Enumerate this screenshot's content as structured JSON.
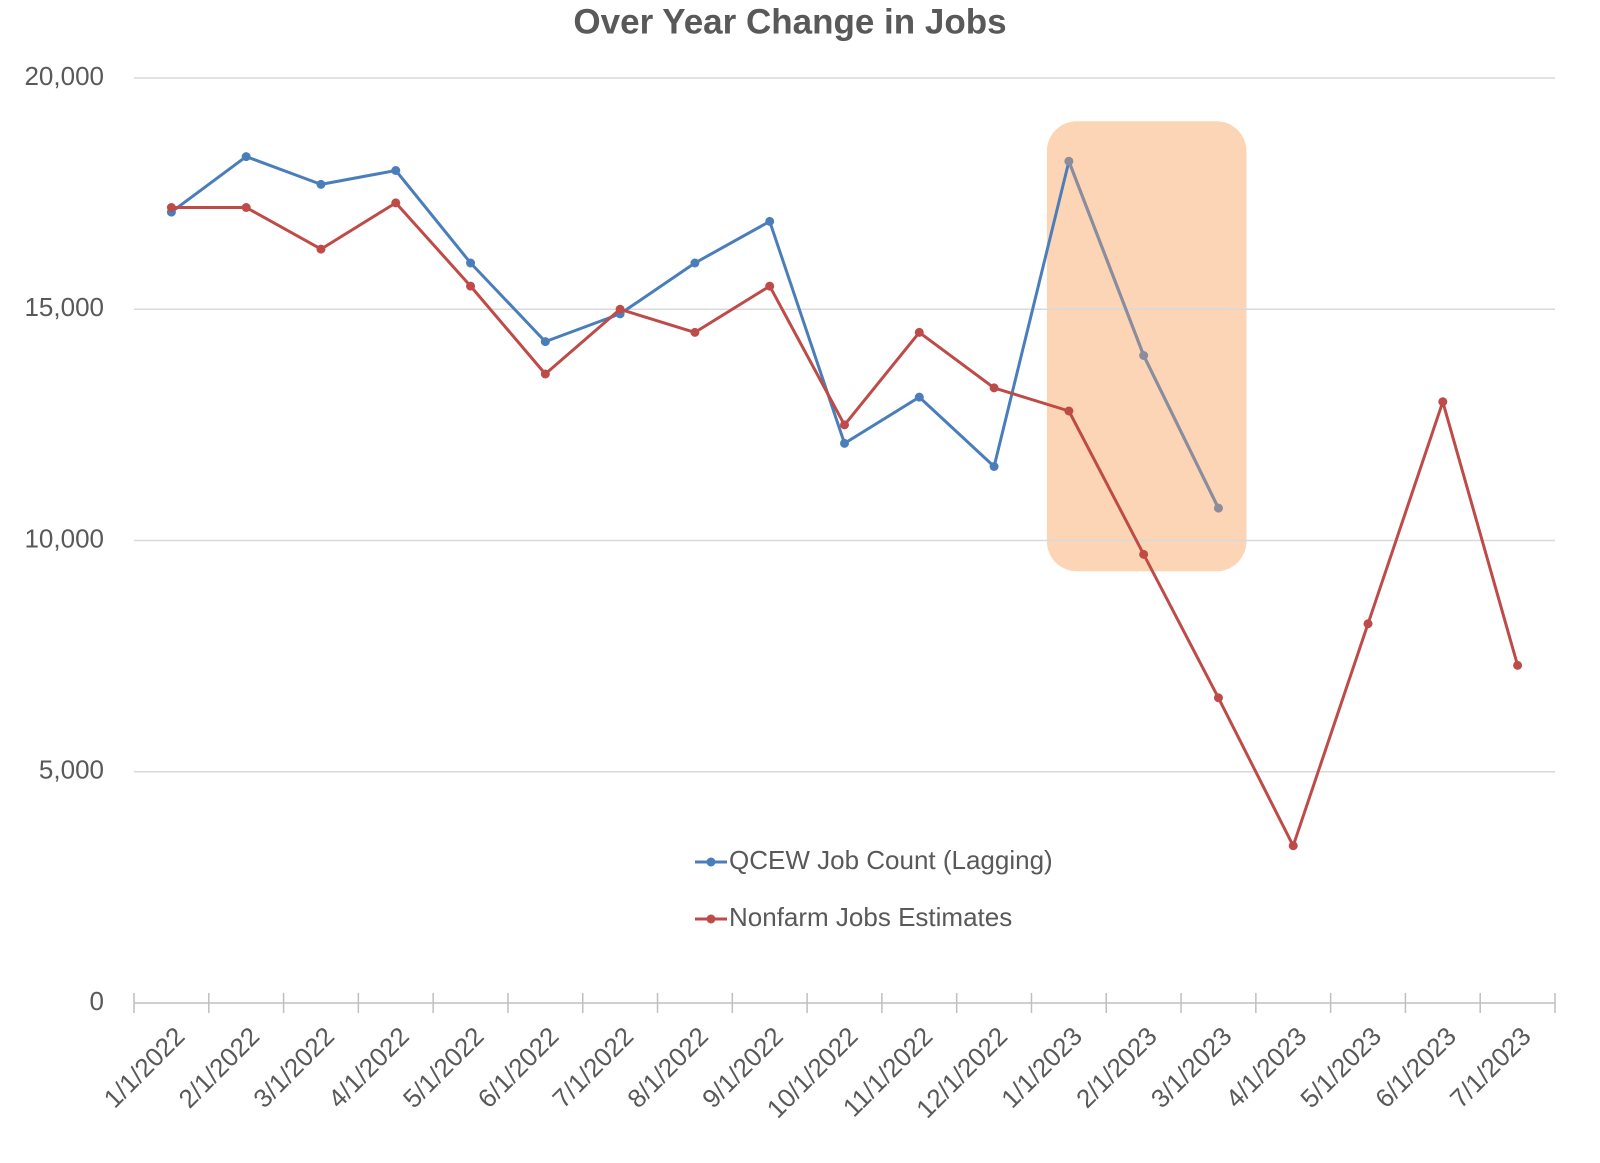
{
  "chart_data": {
    "type": "line",
    "title": "Over Year Change in Jobs",
    "categories": [
      "1/1/2022",
      "2/1/2022",
      "3/1/2022",
      "4/1/2022",
      "5/1/2022",
      "6/1/2022",
      "7/1/2022",
      "8/1/2022",
      "9/1/2022",
      "10/1/2022",
      "11/1/2022",
      "12/1/2022",
      "1/1/2023",
      "2/1/2023",
      "3/1/2023",
      "4/1/2023",
      "5/1/2023",
      "6/1/2023",
      "7/1/2023"
    ],
    "series": [
      {
        "name": "QCEW Job Count (Lagging)",
        "color": "#4a7ebb",
        "values": [
          17100,
          18300,
          17700,
          18000,
          16000,
          14300,
          14900,
          16000,
          16900,
          12100,
          13100,
          11600,
          18200,
          14000,
          10700,
          null,
          null,
          null,
          null
        ]
      },
      {
        "name": "Nonfarm Jobs Estimates",
        "color": "#be4b48",
        "values": [
          17200,
          17200,
          16300,
          17300,
          15500,
          13600,
          15000,
          14500,
          15500,
          12500,
          14500,
          13300,
          12800,
          9700,
          6600,
          3400,
          8200,
          13000,
          7300
        ]
      }
    ],
    "ylim": [
      0,
      20000
    ],
    "yticks": [
      0,
      {
        "value": 5000,
        "label": "5,000"
      },
      {
        "value": 10000,
        "label": "10,000"
      },
      {
        "value": 15000,
        "label": "15,000"
      },
      {
        "value": 20000,
        "label": "20,000"
      }
    ],
    "grid": true,
    "highlight_range": [
      "1/1/2023",
      "3/1/2023"
    ],
    "highlight_fill": "#fbd5b5",
    "highlight_line_color": "#8c8c9c"
  }
}
